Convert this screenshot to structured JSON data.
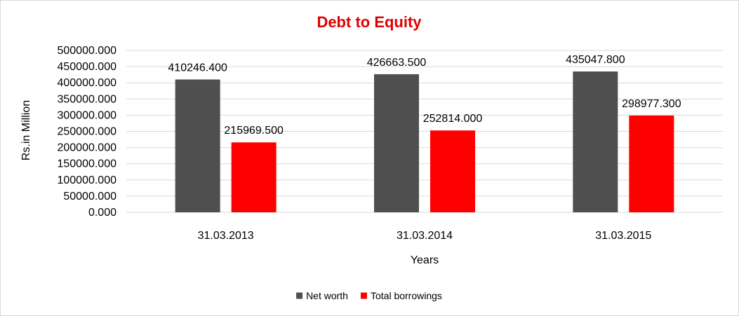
{
  "chart_data": {
    "type": "bar",
    "title": "Debt to Equity",
    "title_color": "#e00000",
    "xlabel": "Years",
    "ylabel": "Rs.in Million",
    "categories": [
      "31.03.2013",
      "31.03.2014",
      "31.03.2015"
    ],
    "series": [
      {
        "name": "Net worth",
        "color": "#4f4f4f",
        "values": [
          410246.4,
          426663.5,
          435047.8
        ],
        "labels": [
          "410246.400",
          "426663.500",
          "435047.800"
        ]
      },
      {
        "name": "Total borrowings",
        "color": "#ff0000",
        "values": [
          215969.5,
          252814.0,
          298977.3
        ],
        "labels": [
          "215969.500",
          "252814.000",
          "298977.300"
        ]
      }
    ],
    "ylim": [
      0,
      500000
    ],
    "yticks": [
      {
        "value": 0,
        "label": "0.000"
      },
      {
        "value": 50000,
        "label": "50000.000"
      },
      {
        "value": 100000,
        "label": "100000.000"
      },
      {
        "value": 150000,
        "label": "150000.000"
      },
      {
        "value": 200000,
        "label": "200000.000"
      },
      {
        "value": 250000,
        "label": "250000.000"
      },
      {
        "value": 300000,
        "label": "300000.000"
      },
      {
        "value": 350000,
        "label": "350000.000"
      },
      {
        "value": 400000,
        "label": "400000.000"
      },
      {
        "value": 450000,
        "label": "450000.000"
      },
      {
        "value": 500000,
        "label": "500000.000"
      }
    ],
    "grid": true,
    "gridline_color": "#d9d9d9",
    "legend_position": "bottom"
  }
}
